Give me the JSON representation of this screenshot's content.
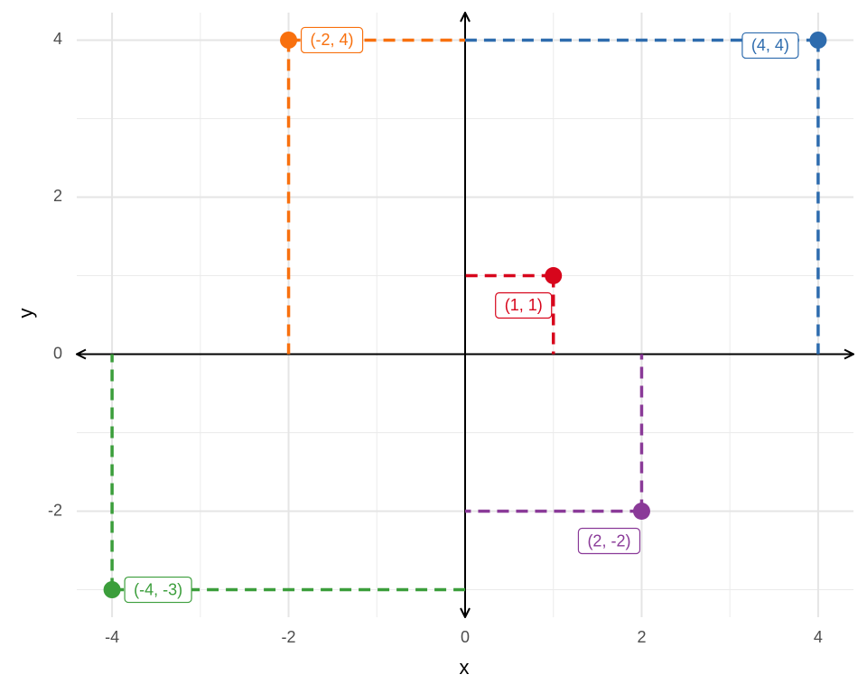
{
  "chart_data": {
    "type": "scatter",
    "x_label": "x",
    "y_label": "y",
    "xlim": [
      -4.4,
      4.4
    ],
    "ylim": [
      -3.35,
      4.35
    ],
    "xticks": [
      -4,
      -2,
      0,
      2,
      4
    ],
    "yticks": [
      -2,
      0,
      2,
      4
    ],
    "x_minor_grid": [
      -3,
      -1,
      1,
      3
    ],
    "y_minor_grid": [
      -3,
      -1,
      1,
      3
    ],
    "grid": true,
    "points": [
      {
        "x": -2,
        "y": 4,
        "color": "#f8700e",
        "label": "(-2, 4)"
      },
      {
        "x": 4,
        "y": 4,
        "color": "#2e6cae",
        "label": "(4, 4)"
      },
      {
        "x": 1,
        "y": 1,
        "color": "#d7061c",
        "label": "(1, 1)"
      },
      {
        "x": 2,
        "y": -2,
        "color": "#8a3a98",
        "label": "(2, -2)"
      },
      {
        "x": -4,
        "y": -3,
        "color": "#3b9e3b",
        "label": "(-4, -3)"
      }
    ]
  }
}
